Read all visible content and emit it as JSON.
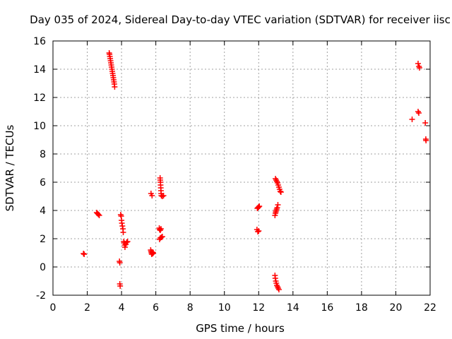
{
  "chart_data": {
    "type": "scatter",
    "title": "Day 035 of 2024, Sidereal Day-to-day VTEC variation (SDTVAR) for receiver iisc",
    "xlabel": "GPS time / hours",
    "ylabel": "SDTVAR / TECUs",
    "xlim": [
      0,
      22
    ],
    "ylim": [
      -2,
      16
    ],
    "xticks": [
      0,
      2,
      4,
      6,
      8,
      10,
      12,
      14,
      16,
      18,
      20,
      22
    ],
    "yticks": [
      -2,
      0,
      2,
      4,
      6,
      8,
      10,
      12,
      14,
      16
    ],
    "grid": true,
    "marker": "+",
    "color": "#ff0000",
    "series": [
      {
        "name": "iisc",
        "points": [
          [
            1.78,
            0.95
          ],
          [
            1.82,
            0.9
          ],
          [
            2.55,
            3.85
          ],
          [
            2.6,
            3.78
          ],
          [
            2.65,
            3.72
          ],
          [
            2.7,
            3.65
          ],
          [
            3.28,
            15.15
          ],
          [
            3.3,
            15.05
          ],
          [
            3.32,
            14.9
          ],
          [
            3.34,
            14.75
          ],
          [
            3.36,
            14.6
          ],
          [
            3.38,
            14.45
          ],
          [
            3.4,
            14.3
          ],
          [
            3.42,
            14.15
          ],
          [
            3.44,
            14.0
          ],
          [
            3.46,
            13.85
          ],
          [
            3.48,
            13.7
          ],
          [
            3.5,
            13.55
          ],
          [
            3.52,
            13.4
          ],
          [
            3.54,
            13.25
          ],
          [
            3.56,
            13.1
          ],
          [
            3.58,
            12.95
          ],
          [
            3.6,
            12.75
          ],
          [
            3.88,
            0.4
          ],
          [
            3.9,
            0.3
          ],
          [
            3.9,
            -1.2
          ],
          [
            3.92,
            -1.35
          ],
          [
            3.95,
            3.7
          ],
          [
            3.98,
            3.6
          ],
          [
            4.0,
            3.3
          ],
          [
            4.02,
            3.1
          ],
          [
            4.05,
            2.9
          ],
          [
            4.08,
            2.7
          ],
          [
            4.1,
            2.45
          ],
          [
            4.13,
            1.8
          ],
          [
            4.15,
            1.7
          ],
          [
            4.18,
            1.55
          ],
          [
            4.2,
            1.4
          ],
          [
            4.25,
            1.6
          ],
          [
            4.3,
            1.75
          ],
          [
            4.35,
            1.8
          ],
          [
            5.7,
            1.2
          ],
          [
            5.72,
            1.1
          ],
          [
            5.74,
            1.0
          ],
          [
            5.76,
            0.9
          ],
          [
            5.8,
            1.05
          ],
          [
            5.82,
            0.95
          ],
          [
            5.85,
            1.0
          ],
          [
            5.72,
            5.2
          ],
          [
            5.78,
            5.05
          ],
          [
            6.2,
            2.75
          ],
          [
            6.22,
            2.65
          ],
          [
            6.26,
            2.6
          ],
          [
            6.3,
            2.7
          ],
          [
            6.22,
            1.95
          ],
          [
            6.26,
            2.05
          ],
          [
            6.32,
            2.1
          ],
          [
            6.38,
            2.15
          ],
          [
            6.25,
            6.3
          ],
          [
            6.26,
            6.15
          ],
          [
            6.27,
            6.0
          ],
          [
            6.28,
            5.8
          ],
          [
            6.29,
            5.6
          ],
          [
            6.3,
            5.4
          ],
          [
            6.31,
            5.2
          ],
          [
            6.32,
            5.05
          ],
          [
            6.38,
            5.0
          ],
          [
            6.45,
            5.05
          ],
          [
            11.9,
            2.65
          ],
          [
            11.95,
            2.5
          ],
          [
            12.0,
            2.55
          ],
          [
            11.92,
            4.15
          ],
          [
            11.96,
            4.2
          ],
          [
            12.0,
            4.25
          ],
          [
            12.04,
            4.3
          ],
          [
            12.98,
            6.25
          ],
          [
            13.02,
            6.15
          ],
          [
            13.06,
            6.05
          ],
          [
            13.1,
            5.95
          ],
          [
            13.14,
            5.8
          ],
          [
            13.18,
            5.65
          ],
          [
            13.22,
            5.5
          ],
          [
            13.26,
            5.35
          ],
          [
            13.3,
            5.3
          ],
          [
            12.95,
            3.65
          ],
          [
            12.98,
            3.8
          ],
          [
            13.0,
            3.9
          ],
          [
            13.02,
            4.0
          ],
          [
            13.05,
            4.1
          ],
          [
            13.08,
            4.2
          ],
          [
            13.12,
            4.4
          ],
          [
            12.95,
            -0.6
          ],
          [
            12.97,
            -0.8
          ],
          [
            13.0,
            -1.0
          ],
          [
            13.03,
            -1.15
          ],
          [
            13.06,
            -1.3
          ],
          [
            13.1,
            -1.4
          ],
          [
            13.14,
            -1.5
          ],
          [
            13.18,
            -1.6
          ],
          [
            20.95,
            10.45
          ],
          [
            21.3,
            11.0
          ],
          [
            21.34,
            10.9
          ],
          [
            21.3,
            14.4
          ],
          [
            21.35,
            14.2
          ],
          [
            21.38,
            14.1
          ],
          [
            21.72,
            10.2
          ],
          [
            21.75,
            9.05
          ],
          [
            21.76,
            8.95
          ]
        ]
      }
    ]
  }
}
